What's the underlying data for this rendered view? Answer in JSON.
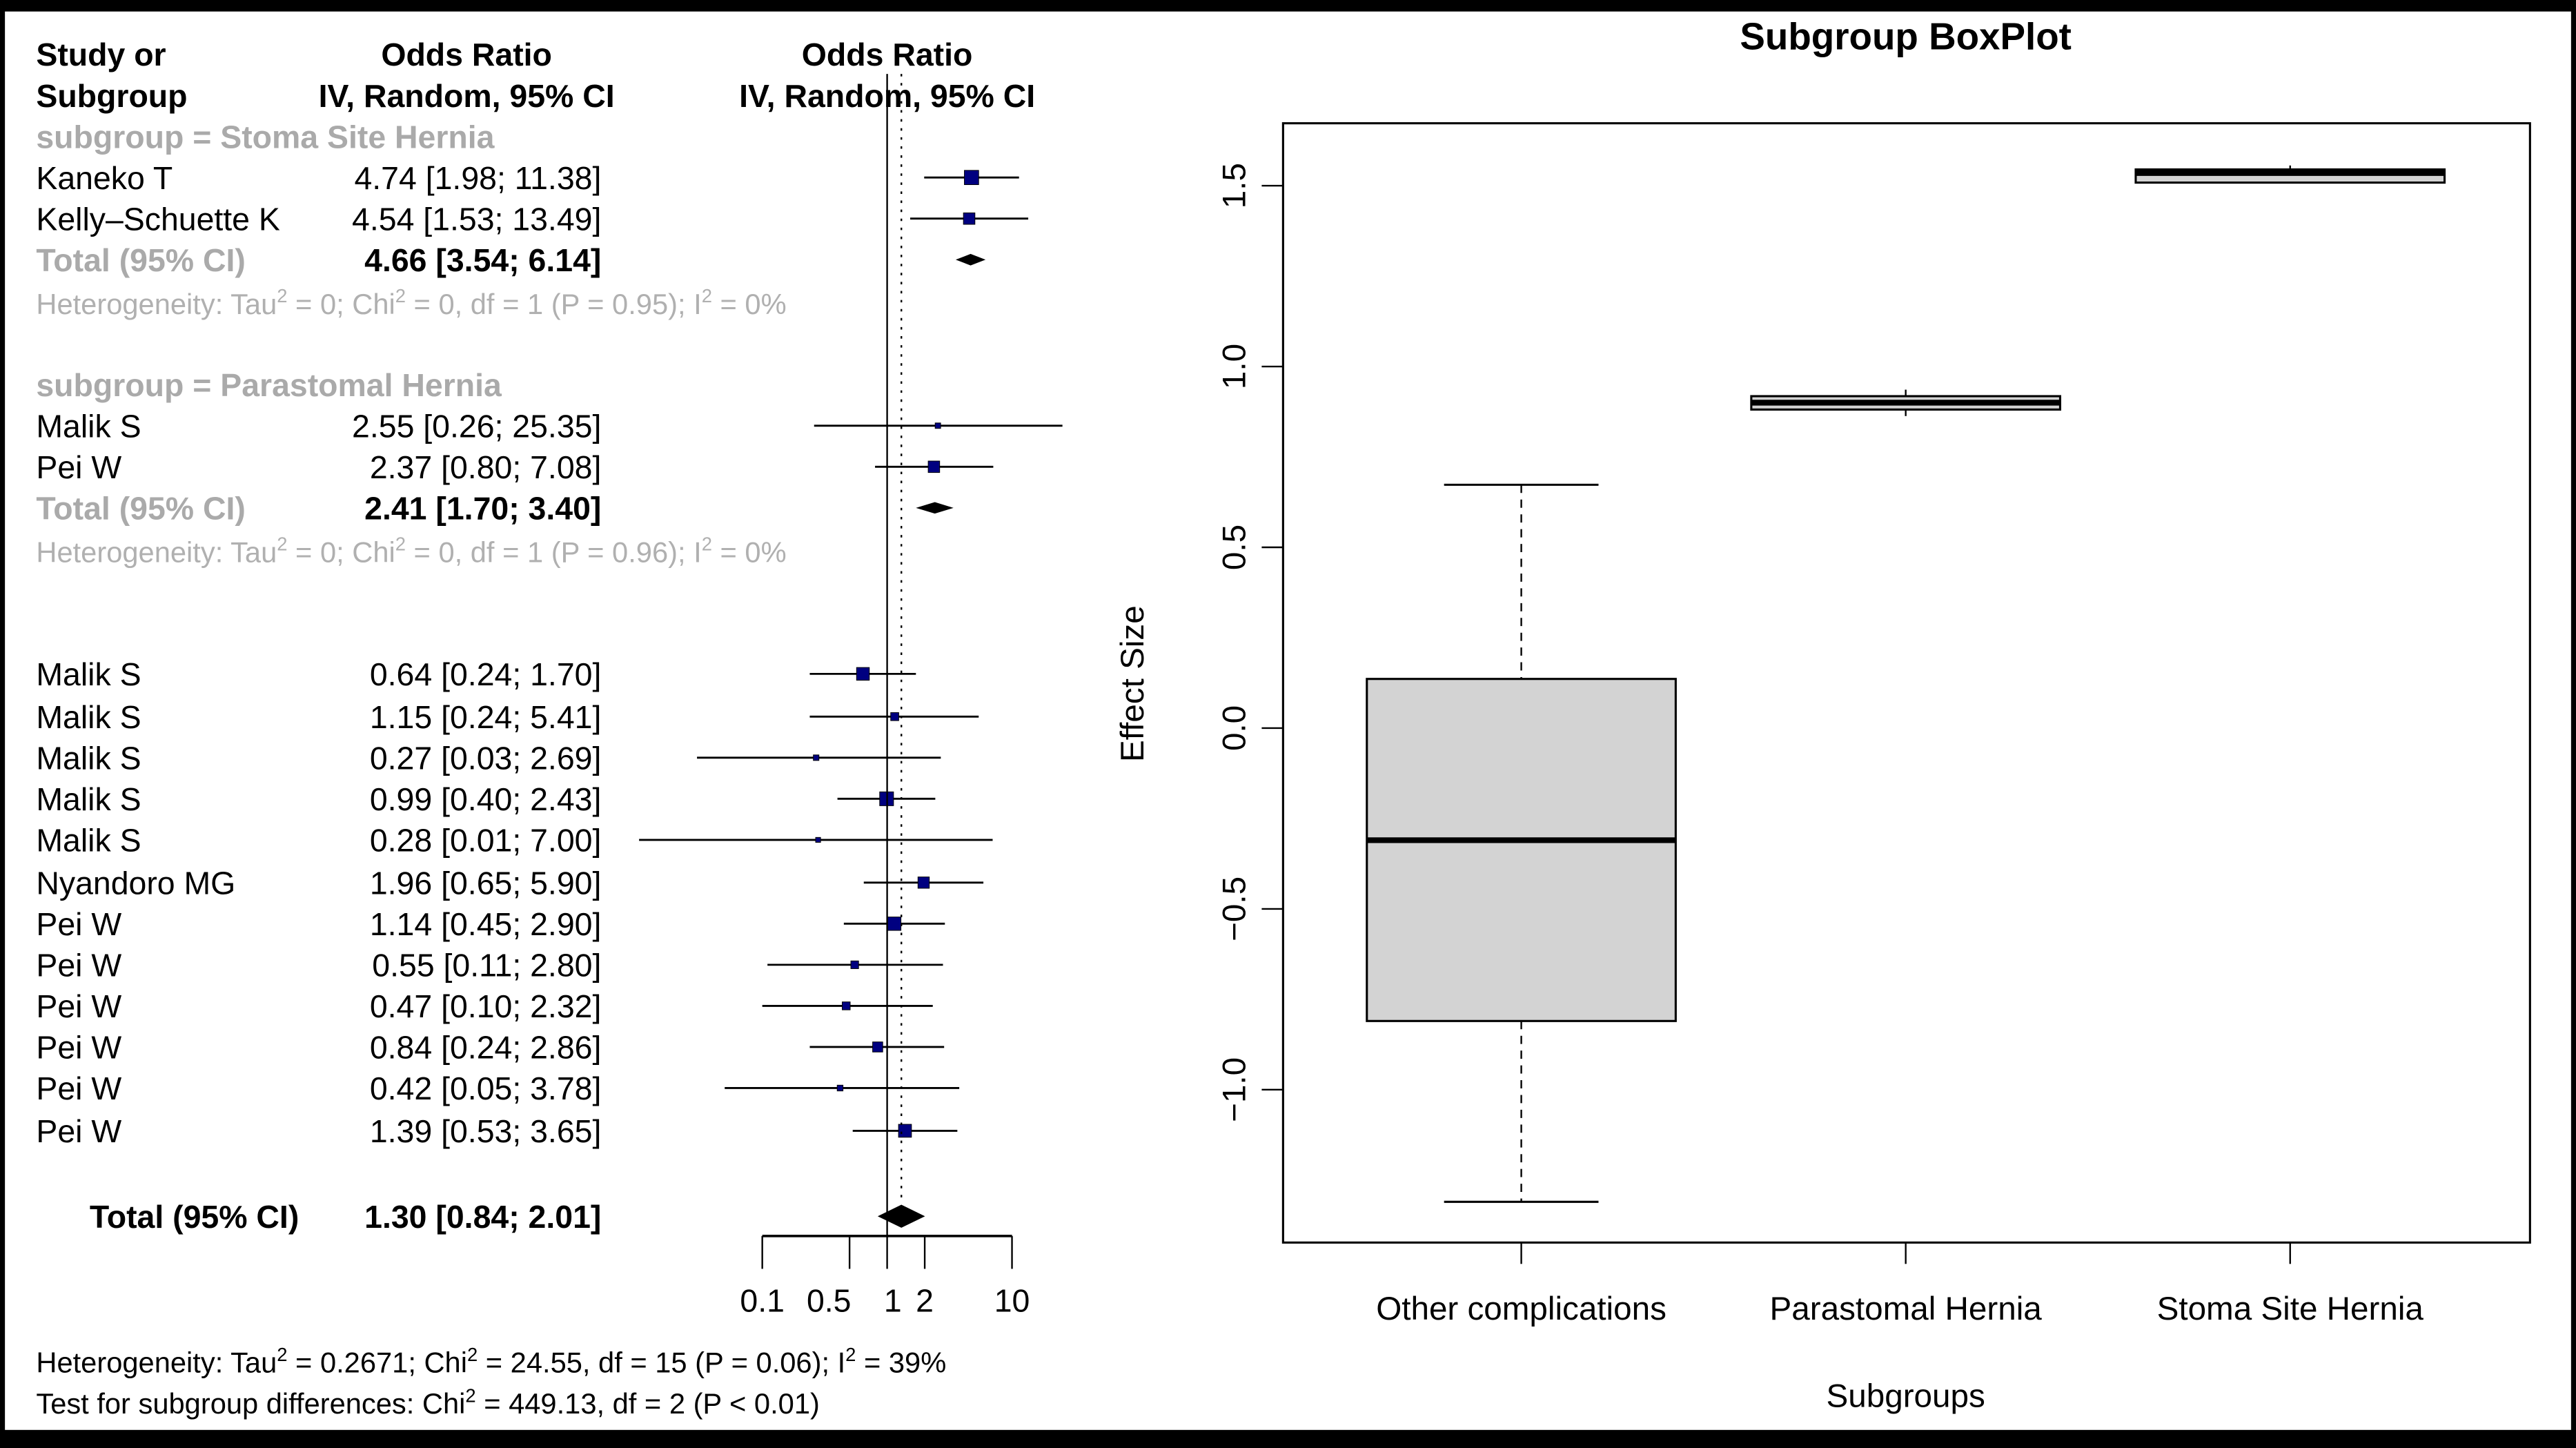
{
  "chart_data": [
    {
      "type": "forest",
      "headers": {
        "study_line1": "Study or",
        "study_line2": "Subgroup",
        "or_line1": "Odds Ratio",
        "or_line2": "IV, Random, 95% CI",
        "plot_line1": "Odds Ratio",
        "plot_line2": "IV, Random, 95% CI"
      },
      "subgroups": [
        {
          "label": "subgroup = Stoma Site Hernia",
          "studies": [
            {
              "study": "Kaneko T",
              "or": 4.74,
              "lower": 1.98,
              "upper": 11.38,
              "text": "4.74 [1.98; 11.38]"
            },
            {
              "study": "Kelly–Schuette K",
              "or": 4.54,
              "lower": 1.53,
              "upper": 13.49,
              "text": "4.54 [1.53; 13.49]"
            }
          ],
          "total": {
            "label": "Total (95% CI)",
            "or": 4.66,
            "lower": 3.54,
            "upper": 6.14,
            "text": "4.66 [3.54;  6.14]"
          },
          "heterogeneity": {
            "prefix": "Heterogeneity: Tau",
            "chi_part": " = 0; Chi",
            "df_part": " = 0, df = 1 (P = 0.95); I",
            "end": " = 0%"
          }
        },
        {
          "label": "subgroup = Parastomal Hernia",
          "studies": [
            {
              "study": "Malik S",
              "or": 2.55,
              "lower": 0.26,
              "upper": 25.35,
              "text": "2.55 [0.26; 25.35]"
            },
            {
              "study": "Pei W",
              "or": 2.37,
              "lower": 0.8,
              "upper": 7.08,
              "text": "2.37 [0.80;  7.08]"
            }
          ],
          "total": {
            "label": "Total (95% CI)",
            "or": 2.41,
            "lower": 1.7,
            "upper": 3.4,
            "text": "2.41 [1.70;  3.40]"
          },
          "heterogeneity": {
            "prefix": "Heterogeneity: Tau",
            "chi_part": " = 0; Chi",
            "df_part": " = 0, df = 1 (P = 0.96); I",
            "end": " = 0%"
          }
        },
        {
          "label": "",
          "studies": [
            {
              "study": "Malik S",
              "or": 0.64,
              "lower": 0.24,
              "upper": 1.7,
              "text": "0.64 [0.24;  1.70]"
            },
            {
              "study": "Malik S",
              "or": 1.15,
              "lower": 0.24,
              "upper": 5.41,
              "text": "1.15 [0.24;  5.41]"
            },
            {
              "study": "Malik S",
              "or": 0.27,
              "lower": 0.03,
              "upper": 2.69,
              "text": "0.27 [0.03;  2.69]"
            },
            {
              "study": "Malik S",
              "or": 0.99,
              "lower": 0.4,
              "upper": 2.43,
              "text": "0.99 [0.40;  2.43]"
            },
            {
              "study": "Malik S",
              "or": 0.28,
              "lower": 0.01,
              "upper": 7.0,
              "text": "0.28 [0.01;  7.00]"
            },
            {
              "study": "Nyandoro MG",
              "or": 1.96,
              "lower": 0.65,
              "upper": 5.9,
              "text": "1.96 [0.65;  5.90]"
            },
            {
              "study": "Pei W",
              "or": 1.14,
              "lower": 0.45,
              "upper": 2.9,
              "text": "1.14 [0.45;  2.90]"
            },
            {
              "study": "Pei W",
              "or": 0.55,
              "lower": 0.11,
              "upper": 2.8,
              "text": "0.55 [0.11;  2.80]"
            },
            {
              "study": "Pei W",
              "or": 0.47,
              "lower": 0.1,
              "upper": 2.32,
              "text": "0.47 [0.10;  2.32]"
            },
            {
              "study": "Pei W",
              "or": 0.84,
              "lower": 0.24,
              "upper": 2.86,
              "text": "0.84 [0.24;  2.86]"
            },
            {
              "study": "Pei W",
              "or": 0.42,
              "lower": 0.05,
              "upper": 3.78,
              "text": "0.42 [0.05;  3.78]"
            },
            {
              "study": "Pei W",
              "or": 1.39,
              "lower": 0.53,
              "upper": 3.65,
              "text": "1.39 [0.53;  3.65]"
            }
          ]
        }
      ],
      "overall": {
        "label": "Total (95% CI)",
        "or": 1.3,
        "lower": 0.84,
        "upper": 2.01,
        "text": "1.30 [0.84;  2.01]"
      },
      "x_axis": {
        "scale": "log",
        "ticks": [
          0.1,
          0.5,
          1,
          2,
          10
        ],
        "tick_labels": [
          "0.1",
          "0.5",
          "1",
          "2",
          "10"
        ],
        "range": [
          0.1,
          10
        ]
      },
      "footer": {
        "heterogeneity": {
          "prefix": "Heterogeneity: Tau",
          "chi_part": " = 0.2671; Chi",
          "df_part": " = 24.55, df = 15 (P = 0.06); I",
          "end": " = 39%"
        },
        "subgroup_test": {
          "prefix": "Test for subgroup differences: Chi",
          "end": " = 449.13, df = 2 (P < 0.01)"
        },
        "sup": "2"
      },
      "colors": {
        "square": "#000080",
        "group_label": "#aaaaaa"
      }
    },
    {
      "type": "boxplot",
      "title": "Subgroup BoxPlot",
      "xlabel": "Subgroups",
      "ylabel": "Effect Size",
      "ylim": [
        -1.4,
        1.65
      ],
      "y_ticks": [
        -1.0,
        -0.5,
        0.0,
        0.5,
        1.0,
        1.5
      ],
      "y_tick_labels": [
        "−1.0",
        "−0.5",
        "0.0",
        "0.5",
        "1.0",
        "1.5"
      ],
      "categories": [
        "Other complications",
        "Parastomal Hernia",
        "Stoma Site Hernia"
      ],
      "boxes": [
        {
          "name": "Other complications",
          "min": -1.31,
          "q1": -0.81,
          "median": -0.31,
          "q3": 0.136,
          "max": 0.673
        },
        {
          "name": "Parastomal Hernia",
          "min": 0.863,
          "q1": 0.881,
          "median": 0.9,
          "q3": 0.918,
          "max": 0.936
        },
        {
          "name": "Stoma Site Hernia",
          "min": 1.513,
          "q1": 1.524,
          "median": 1.535,
          "q3": 1.545,
          "max": 1.556
        }
      ],
      "colors": {
        "box_fill": "#d3d3d3"
      }
    }
  ]
}
